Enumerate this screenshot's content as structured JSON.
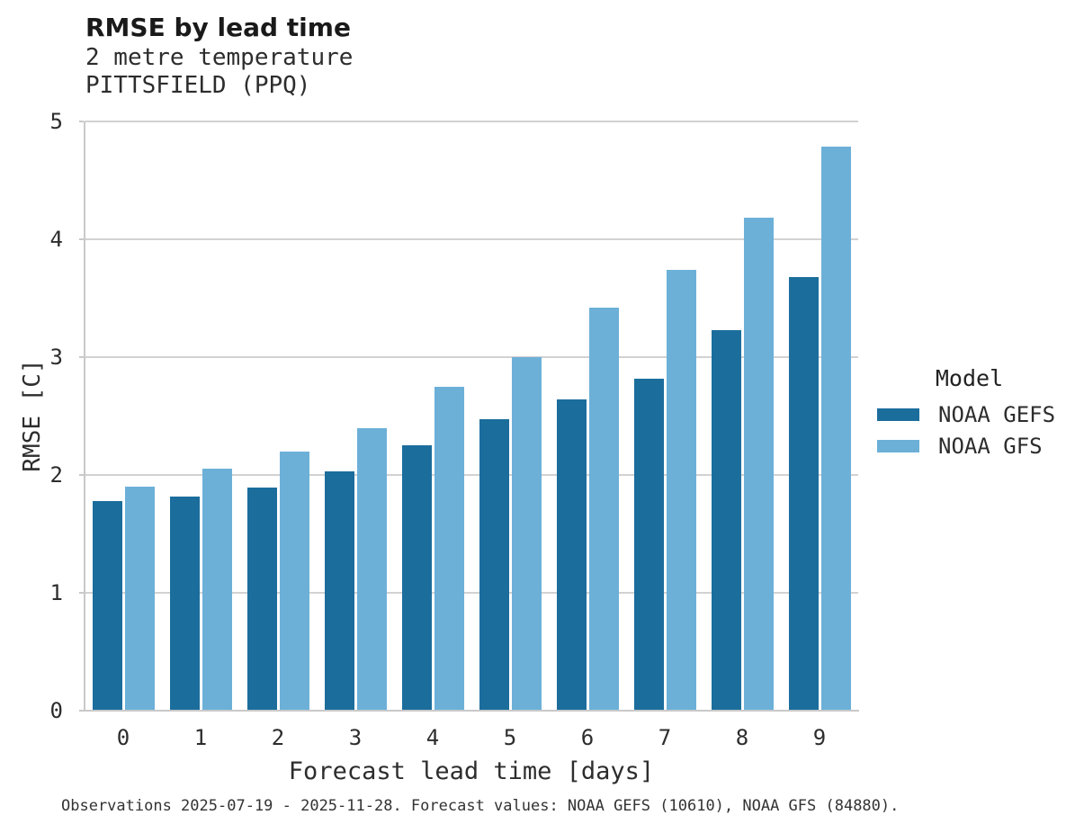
{
  "header": {
    "title": "RMSE by lead time",
    "subtitle_variable": "2 metre temperature",
    "subtitle_station": "PITTSFIELD (PPQ)"
  },
  "chart_data": {
    "type": "bar",
    "title": "RMSE by lead time",
    "subtitle": "2 metre temperature — PITTSFIELD (PPQ)",
    "categories": [
      "0",
      "1",
      "2",
      "3",
      "4",
      "5",
      "6",
      "7",
      "8",
      "9"
    ],
    "series": [
      {
        "name": "NOAA GEFS",
        "color": "#1b6d9c",
        "values": [
          1.78,
          1.82,
          1.89,
          2.03,
          2.25,
          2.47,
          2.64,
          2.82,
          3.23,
          3.68
        ]
      },
      {
        "name": "NOAA GFS",
        "color": "#6cb0d8",
        "values": [
          1.9,
          2.05,
          2.2,
          2.4,
          2.75,
          3.0,
          3.42,
          3.74,
          4.18,
          4.79
        ]
      }
    ],
    "xlabel": "Forecast lead time [days]",
    "ylabel": "RMSE [C]",
    "ylim": [
      0,
      5
    ],
    "yticks": [
      0,
      1,
      2,
      3,
      4,
      5
    ],
    "legend_title": "Model",
    "legend_position": "right",
    "grid": "horizontal",
    "gridline_color": "#d2d2d2",
    "spine_color": "#c9c9c9",
    "background_color": "#ffffff"
  },
  "caption": "Observations 2025-07-19 - 2025-11-28. Forecast values: NOAA GEFS (10610), NOAA GFS (84880)."
}
